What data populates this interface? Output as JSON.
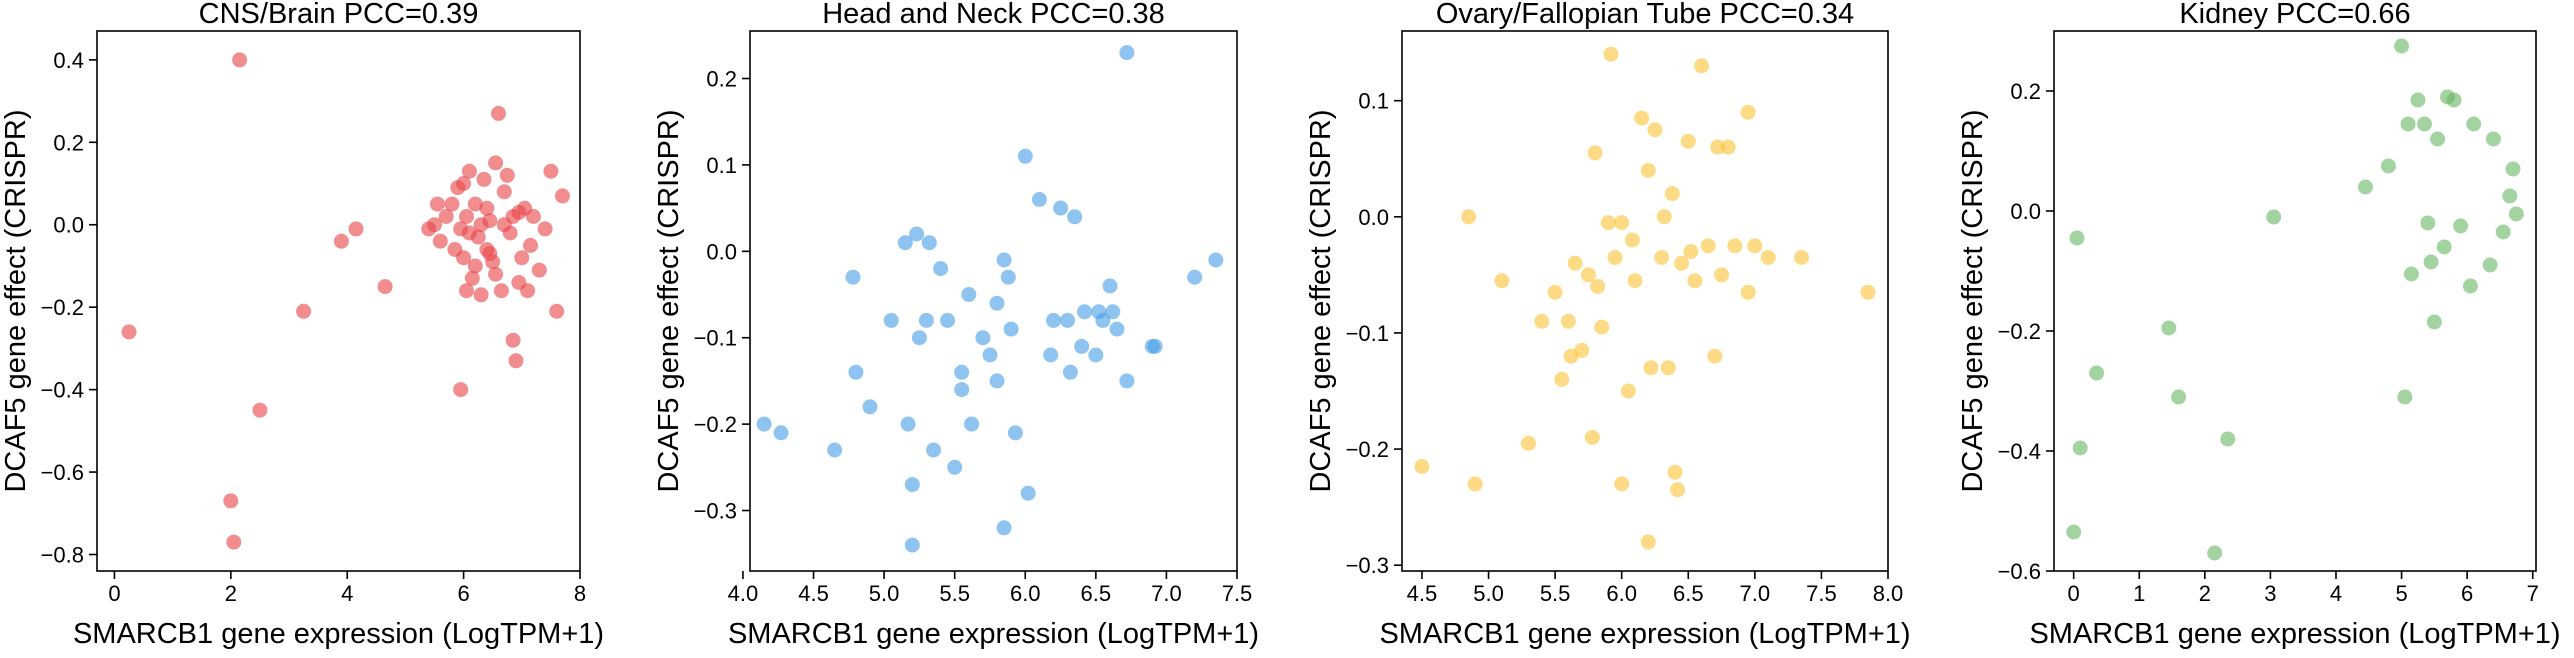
{
  "chart_data": [
    {
      "type": "scatter",
      "title": "CNS/Brain PCC=0.39",
      "xlabel": "SMARCB1 gene expression (LogTPM+1)",
      "ylabel": "DCAF5 gene effect (CRISPR)",
      "xlim": [
        -0.3,
        8
      ],
      "ylim": [
        -0.84,
        0.47
      ],
      "xticks": [
        0,
        2,
        4,
        6,
        8
      ],
      "xtick_labels": [
        "0",
        "2",
        "4",
        "6",
        "8"
      ],
      "yticks": [
        -0.8,
        -0.6,
        -0.4,
        -0.2,
        0.0,
        0.2,
        0.4
      ],
      "ytick_labels": [
        "−0.8",
        "−0.6",
        "−0.4",
        "−0.2",
        "0.0",
        "0.2",
        "0.4"
      ],
      "color": "#e8474a",
      "grid": false,
      "points": [
        [
          0.25,
          -0.26
        ],
        [
          2.15,
          0.4
        ],
        [
          2.0,
          -0.67
        ],
        [
          2.05,
          -0.77
        ],
        [
          2.5,
          -0.45
        ],
        [
          3.25,
          -0.21
        ],
        [
          3.9,
          -0.04
        ],
        [
          4.15,
          -0.01
        ],
        [
          4.65,
          -0.15
        ],
        [
          5.4,
          -0.01
        ],
        [
          5.5,
          0.0
        ],
        [
          5.55,
          0.05
        ],
        [
          5.6,
          -0.04
        ],
        [
          5.7,
          0.02
        ],
        [
          5.8,
          0.05
        ],
        [
          5.9,
          0.09
        ],
        [
          5.95,
          -0.01
        ],
        [
          6.0,
          -0.08
        ],
        [
          6.05,
          0.02
        ],
        [
          5.95,
          -0.4
        ],
        [
          6.1,
          0.13
        ],
        [
          6.15,
          -0.13
        ],
        [
          6.2,
          0.05
        ],
        [
          6.25,
          -0.03
        ],
        [
          6.3,
          -0.17
        ],
        [
          6.35,
          0.11
        ],
        [
          6.4,
          -0.06
        ],
        [
          6.45,
          0.01
        ],
        [
          6.5,
          -0.09
        ],
        [
          6.55,
          0.15
        ],
        [
          6.6,
          0.27
        ],
        [
          6.65,
          -0.16
        ],
        [
          6.7,
          0.0
        ],
        [
          6.75,
          0.12
        ],
        [
          6.8,
          -0.02
        ],
        [
          6.85,
          -0.28
        ],
        [
          6.9,
          -0.33
        ],
        [
          6.95,
          0.03
        ],
        [
          7.0,
          -0.08
        ],
        [
          7.05,
          0.04
        ],
        [
          7.1,
          -0.16
        ],
        [
          7.15,
          -0.05
        ],
        [
          7.2,
          0.02
        ],
        [
          7.3,
          -0.11
        ],
        [
          7.4,
          -0.01
        ],
        [
          7.5,
          0.13
        ],
        [
          7.6,
          -0.21
        ],
        [
          7.7,
          0.07
        ],
        [
          6.1,
          -0.02
        ],
        [
          6.2,
          -0.1
        ],
        [
          6.0,
          0.1
        ],
        [
          6.4,
          0.04
        ],
        [
          6.7,
          0.08
        ],
        [
          6.55,
          -0.12
        ],
        [
          6.85,
          0.02
        ],
        [
          5.85,
          -0.06
        ],
        [
          6.3,
          0.0
        ],
        [
          6.95,
          -0.14
        ],
        [
          6.05,
          -0.16
        ],
        [
          6.45,
          -0.07
        ]
      ]
    },
    {
      "type": "scatter",
      "title": "Head and Neck PCC=0.38",
      "xlabel": "SMARCB1 gene expression (LogTPM+1)",
      "ylabel": "DCAF5 gene effect (CRISPR)",
      "xlim": [
        4.05,
        7.5
      ],
      "ylim": [
        -0.37,
        0.255
      ],
      "xticks": [
        4.0,
        4.5,
        5.0,
        5.5,
        6.0,
        6.5,
        7.0,
        7.5
      ],
      "xtick_labels": [
        "4.0",
        "4.5",
        "5.0",
        "5.5",
        "6.0",
        "6.5",
        "7.0",
        "7.5"
      ],
      "yticks": [
        -0.3,
        -0.2,
        -0.1,
        0.0,
        0.1,
        0.2
      ],
      "ytick_labels": [
        "−0.3",
        "−0.2",
        "−0.1",
        "0.0",
        "0.1",
        "0.2"
      ],
      "color": "#4a9fe6",
      "grid": false,
      "points": [
        [
          4.15,
          -0.2
        ],
        [
          4.27,
          -0.21
        ],
        [
          4.65,
          -0.23
        ],
        [
          4.78,
          -0.03
        ],
        [
          4.8,
          -0.14
        ],
        [
          4.9,
          -0.18
        ],
        [
          5.05,
          -0.08
        ],
        [
          5.15,
          0.01
        ],
        [
          5.17,
          -0.2
        ],
        [
          5.2,
          -0.34
        ],
        [
          5.2,
          -0.27
        ],
        [
          5.23,
          0.02
        ],
        [
          5.25,
          -0.1
        ],
        [
          5.3,
          -0.08
        ],
        [
          5.32,
          0.01
        ],
        [
          5.35,
          -0.23
        ],
        [
          5.4,
          -0.02
        ],
        [
          5.45,
          -0.08
        ],
        [
          5.5,
          -0.25
        ],
        [
          5.55,
          -0.14
        ],
        [
          5.55,
          -0.16
        ],
        [
          5.6,
          -0.05
        ],
        [
          5.62,
          -0.2
        ],
        [
          5.7,
          -0.1
        ],
        [
          5.75,
          -0.12
        ],
        [
          5.8,
          -0.15
        ],
        [
          5.8,
          -0.06
        ],
        [
          5.85,
          -0.32
        ],
        [
          5.85,
          -0.01
        ],
        [
          5.88,
          -0.03
        ],
        [
          5.9,
          -0.09
        ],
        [
          5.93,
          -0.21
        ],
        [
          6.0,
          0.11
        ],
        [
          6.02,
          -0.28
        ],
        [
          6.1,
          0.06
        ],
        [
          6.18,
          -0.12
        ],
        [
          6.2,
          -0.08
        ],
        [
          6.25,
          0.05
        ],
        [
          6.3,
          -0.08
        ],
        [
          6.32,
          -0.14
        ],
        [
          6.35,
          0.04
        ],
        [
          6.4,
          -0.11
        ],
        [
          6.42,
          -0.07
        ],
        [
          6.5,
          -0.12
        ],
        [
          6.52,
          -0.07
        ],
        [
          6.55,
          -0.08
        ],
        [
          6.6,
          -0.04
        ],
        [
          6.62,
          -0.07
        ],
        [
          6.65,
          -0.09
        ],
        [
          6.72,
          -0.15
        ],
        [
          6.72,
          0.23
        ],
        [
          6.9,
          -0.11
        ],
        [
          6.92,
          -0.11
        ],
        [
          7.2,
          -0.03
        ],
        [
          7.35,
          -0.01
        ]
      ]
    },
    {
      "type": "scatter",
      "title": "Ovary/Fallopian Tube PCC=0.34",
      "xlabel": "SMARCB1 gene expression (LogTPM+1)",
      "ylabel": "DCAF5 gene effect (CRISPR)",
      "xlim": [
        4.35,
        8.0
      ],
      "ylim": [
        -0.305,
        0.16
      ],
      "xticks": [
        4.5,
        5.0,
        5.5,
        6.0,
        6.5,
        7.0,
        7.5,
        8.0
      ],
      "xtick_labels": [
        "4.5",
        "5.0",
        "5.5",
        "6.0",
        "6.5",
        "7.0",
        "7.5",
        "8.0"
      ],
      "yticks": [
        -0.3,
        -0.2,
        -0.1,
        0.0,
        0.1
      ],
      "ytick_labels": [
        "−0.3",
        "−0.2",
        "−0.1",
        "0.0",
        "0.1"
      ],
      "color": "#fcc33a",
      "grid": false,
      "points": [
        [
          4.5,
          -0.215
        ],
        [
          4.85,
          0.0
        ],
        [
          4.9,
          -0.23
        ],
        [
          5.1,
          -0.055
        ],
        [
          5.3,
          -0.195
        ],
        [
          5.4,
          -0.09
        ],
        [
          5.5,
          -0.065
        ],
        [
          5.55,
          -0.14
        ],
        [
          5.6,
          -0.09
        ],
        [
          5.62,
          -0.12
        ],
        [
          5.65,
          -0.04
        ],
        [
          5.7,
          -0.115
        ],
        [
          5.75,
          -0.05
        ],
        [
          5.78,
          -0.19
        ],
        [
          5.8,
          0.055
        ],
        [
          5.82,
          -0.06
        ],
        [
          5.9,
          -0.005
        ],
        [
          5.92,
          0.14
        ],
        [
          5.95,
          -0.035
        ],
        [
          6.0,
          -0.23
        ],
        [
          6.05,
          -0.15
        ],
        [
          6.08,
          -0.02
        ],
        [
          6.1,
          -0.055
        ],
        [
          6.15,
          0.085
        ],
        [
          6.2,
          -0.28
        ],
        [
          6.2,
          0.04
        ],
        [
          6.22,
          -0.13
        ],
        [
          6.25,
          0.075
        ],
        [
          6.3,
          -0.035
        ],
        [
          6.32,
          0.0
        ],
        [
          6.35,
          -0.13
        ],
        [
          6.38,
          0.02
        ],
        [
          6.4,
          -0.22
        ],
        [
          6.42,
          -0.235
        ],
        [
          6.45,
          -0.04
        ],
        [
          6.5,
          0.065
        ],
        [
          6.52,
          -0.03
        ],
        [
          6.55,
          -0.055
        ],
        [
          6.6,
          0.13
        ],
        [
          6.65,
          -0.025
        ],
        [
          6.7,
          -0.12
        ],
        [
          6.72,
          0.06
        ],
        [
          6.75,
          -0.05
        ],
        [
          6.8,
          0.06
        ],
        [
          6.85,
          -0.025
        ],
        [
          6.95,
          -0.065
        ],
        [
          6.95,
          0.09
        ],
        [
          7.0,
          -0.025
        ],
        [
          7.1,
          -0.035
        ],
        [
          7.35,
          -0.035
        ],
        [
          7.85,
          -0.065
        ],
        [
          6.0,
          -0.005
        ],
        [
          5.85,
          -0.095
        ]
      ]
    },
    {
      "type": "scatter",
      "title": "Kidney PCC=0.66",
      "xlabel": "SMARCB1 gene expression (LogTPM+1)",
      "ylabel": "DCAF5 gene effect (CRISPR)",
      "xlim": [
        -0.3,
        7.05
      ],
      "ylim": [
        -0.6,
        0.3
      ],
      "xticks": [
        0,
        1,
        2,
        3,
        4,
        5,
        6,
        7
      ],
      "xtick_labels": [
        "0",
        "1",
        "2",
        "3",
        "4",
        "5",
        "6",
        "7"
      ],
      "yticks": [
        -0.6,
        -0.4,
        -0.2,
        0.0,
        0.2
      ],
      "ytick_labels": [
        "−0.6",
        "−0.4",
        "−0.2",
        "0.0",
        "0.2"
      ],
      "color": "#6ab866",
      "grid": false,
      "points": [
        [
          0.0,
          -0.535
        ],
        [
          0.05,
          -0.045
        ],
        [
          0.1,
          -0.395
        ],
        [
          0.35,
          -0.27
        ],
        [
          1.45,
          -0.195
        ],
        [
          1.6,
          -0.31
        ],
        [
          2.15,
          -0.57
        ],
        [
          2.35,
          -0.38
        ],
        [
          3.05,
          -0.01
        ],
        [
          4.45,
          0.04
        ],
        [
          4.8,
          0.075
        ],
        [
          5.0,
          0.275
        ],
        [
          5.05,
          -0.31
        ],
        [
          5.1,
          0.145
        ],
        [
          5.15,
          -0.105
        ],
        [
          5.25,
          0.185
        ],
        [
          5.35,
          0.145
        ],
        [
          5.4,
          -0.02
        ],
        [
          5.45,
          -0.085
        ],
        [
          5.5,
          -0.185
        ],
        [
          5.55,
          0.12
        ],
        [
          5.65,
          -0.06
        ],
        [
          5.7,
          0.19
        ],
        [
          5.8,
          0.185
        ],
        [
          5.9,
          -0.025
        ],
        [
          6.05,
          -0.125
        ],
        [
          6.1,
          0.145
        ],
        [
          6.35,
          -0.09
        ],
        [
          6.4,
          0.12
        ],
        [
          6.55,
          -0.035
        ],
        [
          6.65,
          0.025
        ],
        [
          6.7,
          0.07
        ],
        [
          6.75,
          -0.005
        ]
      ]
    }
  ]
}
